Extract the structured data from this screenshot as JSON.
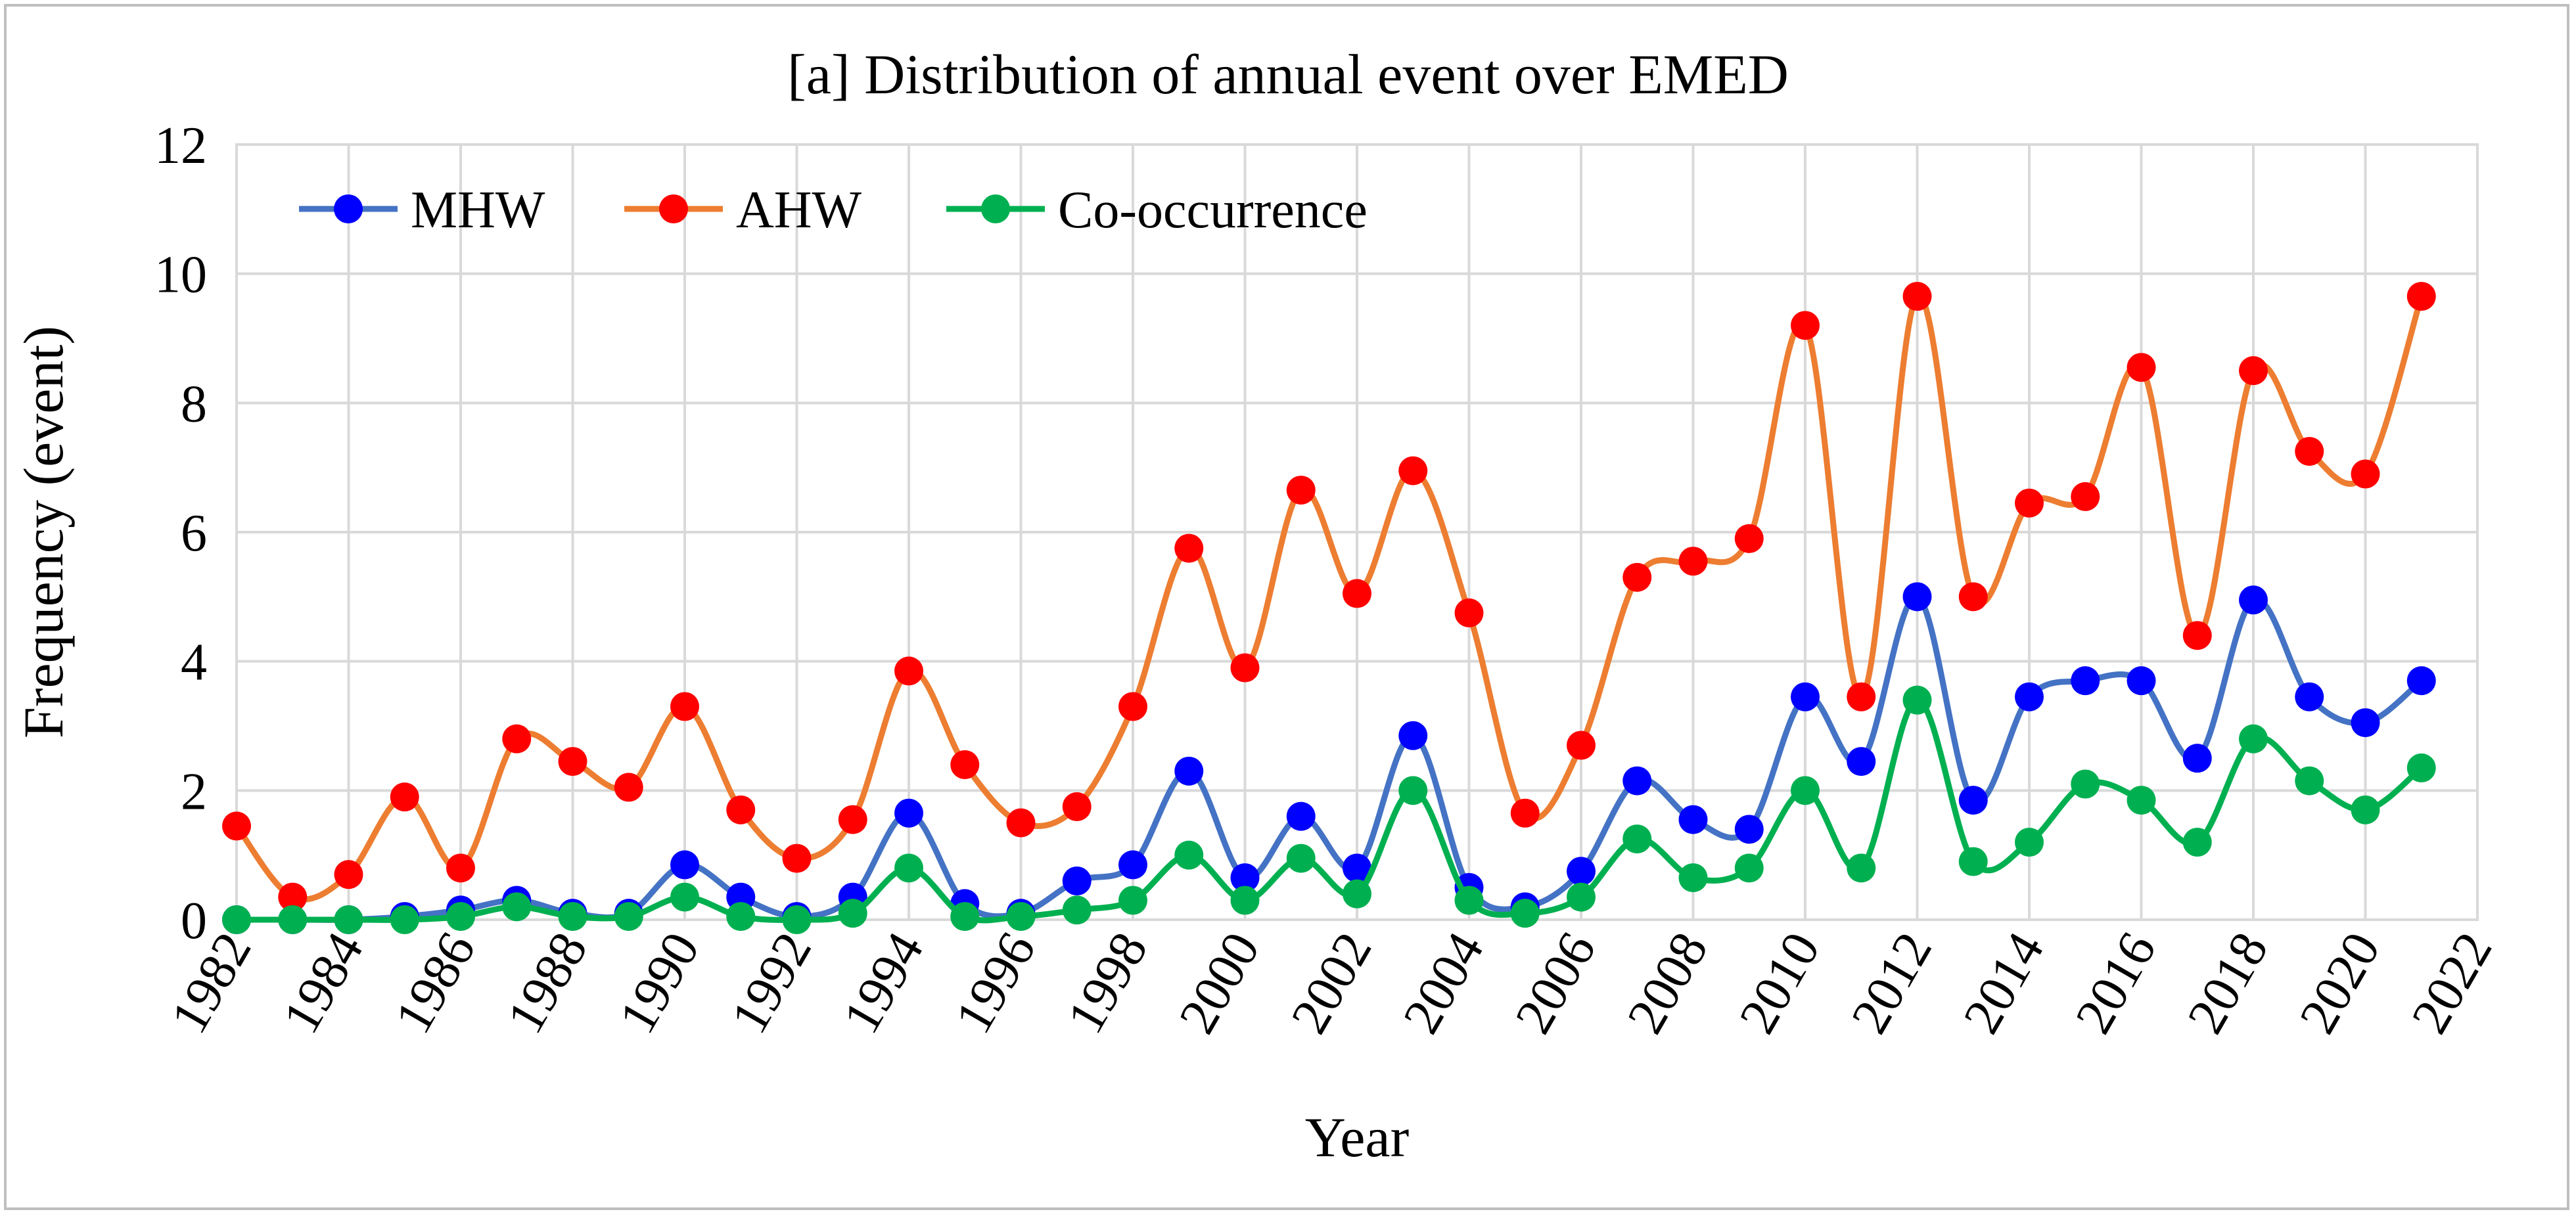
{
  "chart_data": {
    "type": "line",
    "title": "[a] Distribution of annual event over EMED",
    "xlabel": "Year",
    "ylabel": "Frequency (event)",
    "xlim": [
      1982,
      2022
    ],
    "ylim": [
      0,
      12
    ],
    "x_ticks": [
      "1982",
      "1984",
      "1986",
      "1988",
      "1990",
      "1992",
      "1994",
      "1996",
      "1998",
      "2000",
      "2002",
      "2004",
      "2006",
      "2008",
      "2010",
      "2012",
      "2014",
      "2016",
      "2018",
      "2020",
      "2022"
    ],
    "y_ticks": [
      "0",
      "2",
      "4",
      "6",
      "8",
      "10",
      "12"
    ],
    "grid": true,
    "legend_position": "top-left",
    "x": [
      1982,
      1983,
      1984,
      1985,
      1986,
      1987,
      1988,
      1989,
      1990,
      1991,
      1992,
      1993,
      1994,
      1995,
      1996,
      1997,
      1998,
      1999,
      2000,
      2001,
      2002,
      2003,
      2004,
      2005,
      2006,
      2007,
      2008,
      2009,
      2010,
      2011,
      2012,
      2013,
      2014,
      2015,
      2016,
      2017,
      2018,
      2019,
      2020,
      2021
    ],
    "series": [
      {
        "name": "MHW",
        "color": "#0000ff",
        "line_color": "#4472c4",
        "values": [
          0.0,
          0.0,
          0.0,
          0.05,
          0.15,
          0.3,
          0.1,
          0.1,
          0.85,
          0.35,
          0.05,
          0.35,
          1.65,
          0.25,
          0.1,
          0.6,
          0.85,
          2.3,
          0.65,
          1.6,
          0.8,
          2.85,
          0.5,
          0.2,
          0.75,
          2.15,
          1.55,
          1.4,
          3.45,
          2.45,
          5.0,
          1.85,
          3.45,
          3.7,
          3.7,
          2.5,
          4.95,
          3.45,
          3.05,
          3.7
        ]
      },
      {
        "name": "AHW",
        "color": "#ff0000",
        "line_color": "#ed7d31",
        "values": [
          1.45,
          0.35,
          0.7,
          1.9,
          0.8,
          2.8,
          2.45,
          2.05,
          3.3,
          1.7,
          0.95,
          1.55,
          3.85,
          2.4,
          1.5,
          1.75,
          3.3,
          5.75,
          3.9,
          6.65,
          5.05,
          6.95,
          4.75,
          1.65,
          2.7,
          5.3,
          5.55,
          5.9,
          9.2,
          3.45,
          9.65,
          5.0,
          6.45,
          6.55,
          8.55,
          4.4,
          8.5,
          7.25,
          6.9,
          9.65
        ]
      },
      {
        "name": "Co-occurrence",
        "color": "#00b050",
        "line_color": "#00b050",
        "values": [
          0.0,
          0.0,
          0.0,
          0.0,
          0.05,
          0.2,
          0.05,
          0.05,
          0.35,
          0.05,
          0.0,
          0.1,
          0.8,
          0.05,
          0.05,
          0.15,
          0.3,
          1.0,
          0.3,
          0.95,
          0.4,
          2.0,
          0.3,
          0.1,
          0.35,
          1.25,
          0.65,
          0.8,
          2.0,
          0.8,
          3.4,
          0.9,
          1.2,
          2.1,
          1.85,
          1.2,
          2.8,
          2.15,
          1.7,
          2.35
        ]
      }
    ]
  }
}
